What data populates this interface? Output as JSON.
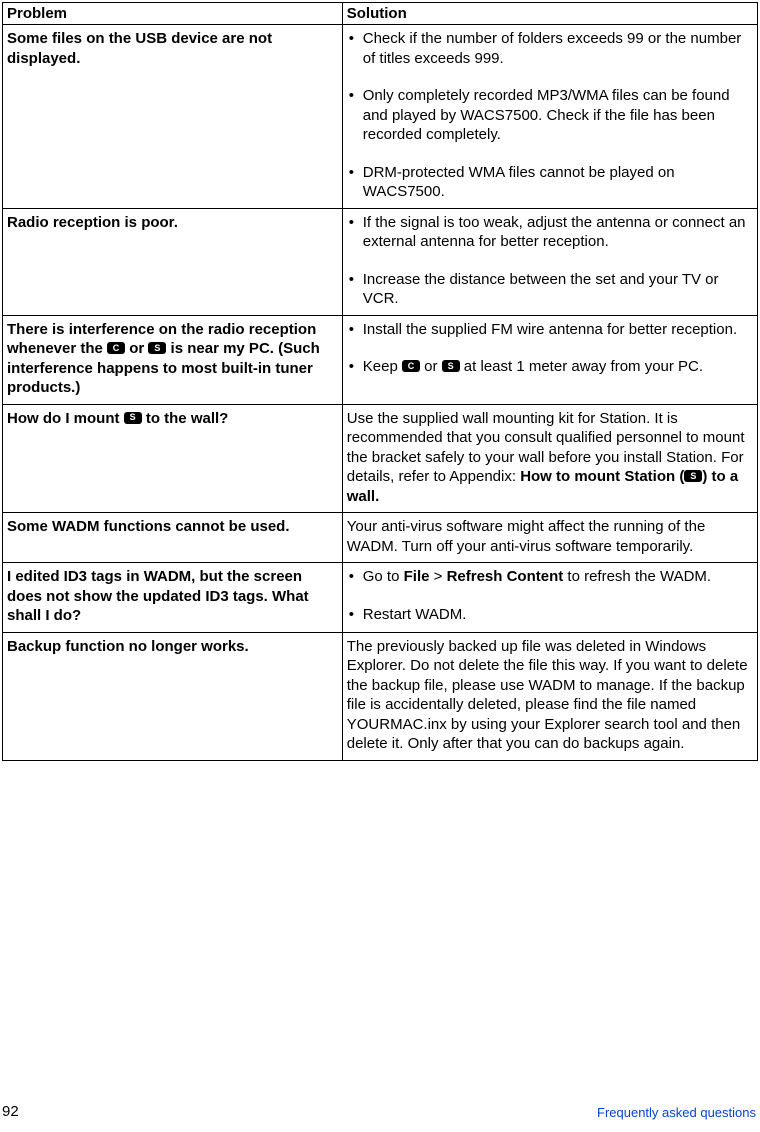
{
  "headers": {
    "problem": "Problem",
    "solution": "Solution"
  },
  "badges": {
    "C": "C",
    "S": "S"
  },
  "rows": [
    {
      "problem_html": "Some files on the USB device are not displayed.",
      "solution_type": "list",
      "items": [
        "Check if the number of folders exceeds 99 or the number of titles exceeds 999.",
        "Only completely recorded MP3/WMA files can be found and played by WACS7500. Check if the file has been recorded completely.",
        "DRM-protected WMA files cannot be played on WACS7500."
      ]
    },
    {
      "problem_html": "Radio reception is poor.",
      "solution_type": "list",
      "items": [
        "If the signal is too weak, adjust the antenna or connect an external antenna for better reception.",
        "Increase the distance between the set and your TV or VCR."
      ]
    },
    {
      "problem_html": "There is interference on the radio reception whenever the {{C}} or {{S}} is near my PC. (Such interference happens to most built-in tuner products.)",
      "solution_type": "list",
      "items": [
        "Install the supplied FM wire antenna for better reception.",
        "Keep {{C}} or {{S}} at least 1 meter away from your PC."
      ]
    },
    {
      "problem_html": "How do I mount {{S}} to the wall?",
      "solution_type": "html",
      "html": "Use the supplied wall mounting kit for Station. It is recommended that you consult qualified personnel to mount the bracket safely to your wall before you install Station. For details, refer to Appendix: <span class=\"bold\">How to mount Station ({{S}}) to a wall.</span>"
    },
    {
      "problem_html": "Some WADM functions cannot be used.",
      "solution_type": "text",
      "text": "Your anti-virus software might affect the running of the WADM. Turn off your anti-virus software temporarily."
    },
    {
      "problem_html": "I edited ID3 tags in WADM, but the screen does not show the updated ID3 tags. What shall I do?",
      "solution_type": "list",
      "items": [
        "Go to <span class=\"bold\">File</span> > <span class=\"bold\">Refresh Content</span> to refresh the WADM.",
        "Restart WADM."
      ]
    },
    {
      "problem_html": "Backup function no longer works.",
      "solution_type": "text",
      "text": "The previously backed up file was deleted in Windows Explorer. Do not delete the file this way. If you want to delete the backup file, please use WADM to manage. If the backup file is accidentally deleted, please find the file named YOURMAC.inx by using your Explorer search tool and then delete it. Only after that you can do backups again."
    }
  ],
  "footer": {
    "page": "92",
    "section": "Frequently asked questions"
  },
  "colors": {
    "link": "#0046d5",
    "text": "#000000",
    "border": "#000000"
  }
}
